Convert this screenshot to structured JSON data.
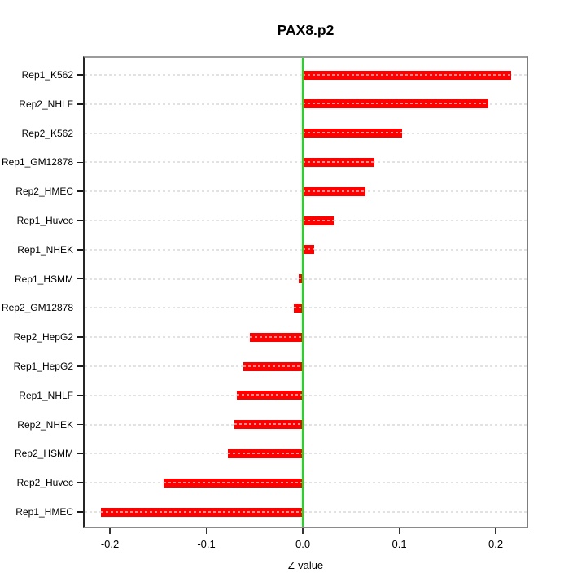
{
  "title": "PAX8.p2",
  "chart_data": {
    "type": "bar",
    "orientation": "horizontal",
    "title": "PAX8.p2",
    "xlabel": "Z-value",
    "ylabel": "",
    "categories": [
      "Rep1_K562",
      "Rep2_NHLF",
      "Rep2_K562",
      "Rep1_GM12878",
      "Rep2_HMEC",
      "Rep1_Huvec",
      "Rep1_NHEK",
      "Rep1_HSMM",
      "Rep2_GM12878",
      "Rep2_HepG2",
      "Rep1_HepG2",
      "Rep1_NHLF",
      "Rep2_NHEK",
      "Rep2_HSMM",
      "Rep2_Huvec",
      "Rep1_HMEC"
    ],
    "values": [
      0.216,
      0.192,
      0.103,
      0.074,
      0.065,
      0.032,
      0.012,
      -0.004,
      -0.009,
      -0.055,
      -0.062,
      -0.068,
      -0.071,
      -0.078,
      -0.144,
      -0.209
    ],
    "xticks": [
      -0.2,
      -0.1,
      0.0,
      0.1,
      0.2
    ],
    "xtick_labels": [
      "-0.2",
      "-0.1",
      "0.0",
      "0.1",
      "0.2"
    ],
    "xlim": [
      -0.2262,
      0.232
    ],
    "grid": true,
    "legend": "none",
    "bar_color": "#fd0000",
    "zero_line_color": "#00ef00",
    "grid_color": "#e2e2e2",
    "frame_color": "#8a8a8a"
  }
}
